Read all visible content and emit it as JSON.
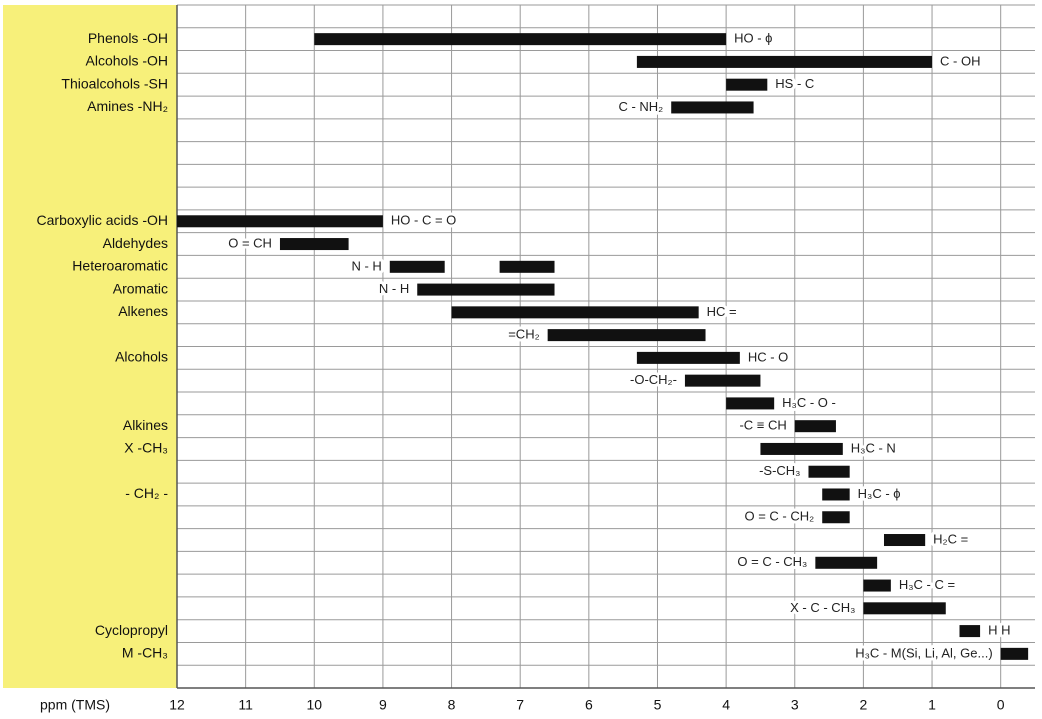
{
  "chart_data": {
    "type": "range-bar",
    "x_label": "ppm (TMS)",
    "xlim": [
      12,
      -0.5
    ],
    "xticks": [
      12,
      11,
      10,
      9,
      8,
      7,
      6,
      5,
      4,
      3,
      2,
      1,
      0
    ],
    "grid": true,
    "panel_color": "#f7f07a",
    "bar_color": "#111111",
    "categories": [
      null,
      "Phenols -OH",
      "Alcohols -OH",
      "Thioalcohols -SH",
      "Amines -NH₂",
      null,
      null,
      null,
      null,
      "Carboxylic acids -OH",
      "Aldehydes",
      "Heteroaromatic",
      "Aromatic",
      "Alkenes",
      null,
      "Alcohols",
      null,
      null,
      "Alkines",
      "X -CH₃",
      null,
      "- CH₂ -",
      null,
      null,
      null,
      null,
      null,
      "Cyclopropyl",
      "M -CH₃",
      null
    ],
    "ranges": [
      null,
      [
        [
          10,
          4
        ]
      ],
      [
        [
          5.3,
          1.0
        ]
      ],
      [
        [
          4.0,
          3.4
        ]
      ],
      [
        [
          4.8,
          3.6
        ]
      ],
      null,
      null,
      null,
      null,
      [
        [
          12,
          9
        ]
      ],
      [
        [
          10.5,
          9.5
        ]
      ],
      [
        [
          8.9,
          8.1
        ],
        [
          7.3,
          6.5
        ]
      ],
      [
        [
          8.5,
          6.5
        ]
      ],
      [
        [
          8.0,
          4.4
        ]
      ],
      [
        [
          6.6,
          4.3
        ]
      ],
      [
        [
          5.3,
          3.8
        ]
      ],
      [
        [
          4.6,
          3.5
        ]
      ],
      [
        [
          4.0,
          3.3
        ]
      ],
      [
        [
          3.0,
          2.4
        ]
      ],
      [
        [
          3.5,
          2.3
        ]
      ],
      [
        [
          2.8,
          2.2
        ]
      ],
      [
        [
          2.6,
          2.2
        ]
      ],
      [
        [
          2.6,
          2.2
        ]
      ],
      [
        [
          1.7,
          1.1
        ]
      ],
      [
        [
          2.7,
          1.8
        ]
      ],
      [
        [
          2.0,
          1.6
        ]
      ],
      [
        [
          2.0,
          0.8
        ]
      ],
      [
        [
          0.6,
          0.3
        ]
      ],
      [
        [
          0.0,
          -0.4
        ]
      ],
      null
    ],
    "annotations": [
      {
        "row": 1,
        "text": "HO - ϕ"
      },
      {
        "row": 2,
        "text": "C - OH"
      },
      {
        "row": 3,
        "text": "HS - C"
      },
      {
        "row": 4,
        "text": "C - NH₂"
      },
      {
        "row": 9,
        "text": "HO - C = O"
      },
      {
        "row": 10,
        "text": "O = CH"
      },
      {
        "row": 11,
        "text": "N - H"
      },
      {
        "row": 12,
        "text": "N - H"
      },
      {
        "row": 13,
        "text": "HC ="
      },
      {
        "row": 14,
        "text": "=CH₂"
      },
      {
        "row": 15,
        "text": "HC - O"
      },
      {
        "row": 16,
        "text": "-O-CH₂-"
      },
      {
        "row": 17,
        "text": "H₃C - O -"
      },
      {
        "row": 18,
        "text": "-C ≡ CH"
      },
      {
        "row": 19,
        "text": "H₃C - N"
      },
      {
        "row": 20,
        "text": "-S-CH₃"
      },
      {
        "row": 21,
        "text": "H₃C - ϕ"
      },
      {
        "row": 22,
        "text": "O = C - CH₂"
      },
      {
        "row": 23,
        "text": "H₂C ="
      },
      {
        "row": 24,
        "text": "O = C - CH₃"
      },
      {
        "row": 25,
        "text": "H₃C - C ="
      },
      {
        "row": 26,
        "text": "X - C - CH₃"
      },
      {
        "row": 27,
        "text": "H H"
      },
      {
        "row": 28,
        "text": "H₃C - M(Si, Li, Al, Ge...)"
      }
    ]
  }
}
